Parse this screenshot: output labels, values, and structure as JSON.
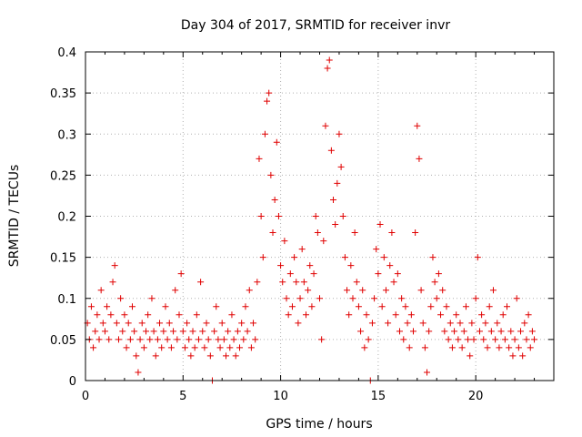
{
  "chart_data": {
    "type": "scatter",
    "title": "Day 304 of 2017, SRMTID for receiver invr",
    "xlabel": "GPS time / hours",
    "ylabel": "SRMTID / TECUs",
    "xlim": [
      0,
      24
    ],
    "ylim": [
      0,
      0.4
    ],
    "xticks": [
      0,
      5,
      10,
      15,
      20
    ],
    "yticks": [
      0,
      0.05,
      0.1,
      0.15,
      0.2,
      0.25,
      0.3,
      0.35,
      0.4
    ],
    "xtick_labels": [
      "0",
      "5",
      "10",
      "15",
      "20"
    ],
    "ytick_labels": [
      "0",
      "0.05",
      "0.1",
      "0.15",
      "0.2",
      "0.25",
      "0.3",
      "0.35",
      "0.4"
    ],
    "grid": true,
    "marker": "+",
    "color": "#e00000",
    "series": [
      {
        "name": "",
        "points": [
          [
            0.1,
            0.07
          ],
          [
            0.2,
            0.05
          ],
          [
            0.3,
            0.09
          ],
          [
            0.4,
            0.04
          ],
          [
            0.5,
            0.06
          ],
          [
            0.6,
            0.08
          ],
          [
            0.7,
            0.05
          ],
          [
            0.8,
            0.11
          ],
          [
            0.9,
            0.07
          ],
          [
            1.0,
            0.06
          ],
          [
            1.1,
            0.09
          ],
          [
            1.2,
            0.05
          ],
          [
            1.3,
            0.08
          ],
          [
            1.4,
            0.12
          ],
          [
            1.5,
            0.14
          ],
          [
            1.6,
            0.07
          ],
          [
            1.7,
            0.05
          ],
          [
            1.8,
            0.1
          ],
          [
            1.9,
            0.06
          ],
          [
            2.0,
            0.08
          ],
          [
            2.1,
            0.04
          ],
          [
            2.2,
            0.07
          ],
          [
            2.3,
            0.05
          ],
          [
            2.4,
            0.09
          ],
          [
            2.5,
            0.06
          ],
          [
            2.6,
            0.03
          ],
          [
            2.7,
            0.01
          ],
          [
            2.8,
            0.05
          ],
          [
            2.9,
            0.07
          ],
          [
            3.0,
            0.04
          ],
          [
            3.1,
            0.06
          ],
          [
            3.2,
            0.08
          ],
          [
            3.3,
            0.05
          ],
          [
            3.4,
            0.1
          ],
          [
            3.5,
            0.06
          ],
          [
            3.6,
            0.03
          ],
          [
            3.7,
            0.05
          ],
          [
            3.8,
            0.07
          ],
          [
            3.9,
            0.04
          ],
          [
            4.0,
            0.06
          ],
          [
            4.1,
            0.09
          ],
          [
            4.2,
            0.05
          ],
          [
            4.3,
            0.07
          ],
          [
            4.4,
            0.04
          ],
          [
            4.5,
            0.06
          ],
          [
            4.6,
            0.11
          ],
          [
            4.7,
            0.05
          ],
          [
            4.8,
            0.08
          ],
          [
            4.9,
            0.13
          ],
          [
            5.0,
            0.06
          ],
          [
            5.1,
            0.04
          ],
          [
            5.2,
            0.07
          ],
          [
            5.3,
            0.05
          ],
          [
            5.4,
            0.03
          ],
          [
            5.5,
            0.06
          ],
          [
            5.6,
            0.04
          ],
          [
            5.7,
            0.08
          ],
          [
            5.8,
            0.05
          ],
          [
            5.9,
            0.12
          ],
          [
            6.0,
            0.06
          ],
          [
            6.1,
            0.04
          ],
          [
            6.2,
            0.07
          ],
          [
            6.3,
            0.05
          ],
          [
            6.4,
            0.03
          ],
          [
            6.5,
            0.0
          ],
          [
            6.6,
            0.06
          ],
          [
            6.7,
            0.09
          ],
          [
            6.8,
            0.05
          ],
          [
            6.9,
            0.04
          ],
          [
            7.0,
            0.07
          ],
          [
            7.1,
            0.05
          ],
          [
            7.2,
            0.03
          ],
          [
            7.3,
            0.06
          ],
          [
            7.4,
            0.04
          ],
          [
            7.5,
            0.08
          ],
          [
            7.6,
            0.05
          ],
          [
            7.7,
            0.03
          ],
          [
            7.8,
            0.06
          ],
          [
            7.9,
            0.04
          ],
          [
            8.0,
            0.07
          ],
          [
            8.1,
            0.05
          ],
          [
            8.2,
            0.09
          ],
          [
            8.3,
            0.06
          ],
          [
            8.4,
            0.11
          ],
          [
            8.5,
            0.04
          ],
          [
            8.6,
            0.07
          ],
          [
            8.7,
            0.05
          ],
          [
            8.8,
            0.12
          ],
          [
            8.9,
            0.27
          ],
          [
            9.0,
            0.2
          ],
          [
            9.1,
            0.15
          ],
          [
            9.2,
            0.3
          ],
          [
            9.3,
            0.34
          ],
          [
            9.4,
            0.35
          ],
          [
            9.5,
            0.25
          ],
          [
            9.6,
            0.18
          ],
          [
            9.7,
            0.22
          ],
          [
            9.8,
            0.29
          ],
          [
            9.9,
            0.2
          ],
          [
            10.0,
            0.14
          ],
          [
            10.1,
            0.12
          ],
          [
            10.2,
            0.17
          ],
          [
            10.3,
            0.1
          ],
          [
            10.4,
            0.08
          ],
          [
            10.5,
            0.13
          ],
          [
            10.6,
            0.09
          ],
          [
            10.7,
            0.15
          ],
          [
            10.8,
            0.12
          ],
          [
            10.9,
            0.07
          ],
          [
            11.0,
            0.1
          ],
          [
            11.1,
            0.16
          ],
          [
            11.2,
            0.12
          ],
          [
            11.3,
            0.08
          ],
          [
            11.4,
            0.11
          ],
          [
            11.5,
            0.14
          ],
          [
            11.6,
            0.09
          ],
          [
            11.7,
            0.13
          ],
          [
            11.8,
            0.2
          ],
          [
            11.9,
            0.18
          ],
          [
            12.0,
            0.1
          ],
          [
            12.1,
            0.05
          ],
          [
            12.2,
            0.17
          ],
          [
            12.3,
            0.31
          ],
          [
            12.4,
            0.38
          ],
          [
            12.5,
            0.39
          ],
          [
            12.6,
            0.28
          ],
          [
            12.7,
            0.22
          ],
          [
            12.8,
            0.19
          ],
          [
            12.9,
            0.24
          ],
          [
            13.0,
            0.3
          ],
          [
            13.1,
            0.26
          ],
          [
            13.2,
            0.2
          ],
          [
            13.3,
            0.15
          ],
          [
            13.4,
            0.11
          ],
          [
            13.5,
            0.08
          ],
          [
            13.6,
            0.14
          ],
          [
            13.7,
            0.1
          ],
          [
            13.8,
            0.18
          ],
          [
            13.9,
            0.12
          ],
          [
            14.0,
            0.09
          ],
          [
            14.1,
            0.06
          ],
          [
            14.2,
            0.11
          ],
          [
            14.3,
            0.04
          ],
          [
            14.4,
            0.08
          ],
          [
            14.5,
            0.05
          ],
          [
            14.6,
            0.0
          ],
          [
            14.7,
            0.07
          ],
          [
            14.8,
            0.1
          ],
          [
            14.9,
            0.16
          ],
          [
            15.0,
            0.13
          ],
          [
            15.1,
            0.19
          ],
          [
            15.2,
            0.09
          ],
          [
            15.3,
            0.15
          ],
          [
            15.4,
            0.11
          ],
          [
            15.5,
            0.07
          ],
          [
            15.6,
            0.14
          ],
          [
            15.7,
            0.18
          ],
          [
            15.8,
            0.12
          ],
          [
            15.9,
            0.08
          ],
          [
            16.0,
            0.13
          ],
          [
            16.1,
            0.06
          ],
          [
            16.2,
            0.1
          ],
          [
            16.3,
            0.05
          ],
          [
            16.4,
            0.09
          ],
          [
            16.5,
            0.07
          ],
          [
            16.6,
            0.04
          ],
          [
            16.7,
            0.08
          ],
          [
            16.8,
            0.06
          ],
          [
            16.9,
            0.18
          ],
          [
            17.0,
            0.31
          ],
          [
            17.1,
            0.27
          ],
          [
            17.2,
            0.11
          ],
          [
            17.3,
            0.07
          ],
          [
            17.4,
            0.04
          ],
          [
            17.5,
            0.01
          ],
          [
            17.6,
            0.06
          ],
          [
            17.7,
            0.09
          ],
          [
            17.8,
            0.15
          ],
          [
            17.9,
            0.12
          ],
          [
            18.0,
            0.1
          ],
          [
            18.1,
            0.13
          ],
          [
            18.2,
            0.08
          ],
          [
            18.3,
            0.11
          ],
          [
            18.4,
            0.06
          ],
          [
            18.5,
            0.09
          ],
          [
            18.6,
            0.05
          ],
          [
            18.7,
            0.07
          ],
          [
            18.8,
            0.04
          ],
          [
            18.9,
            0.06
          ],
          [
            19.0,
            0.08
          ],
          [
            19.1,
            0.05
          ],
          [
            19.2,
            0.07
          ],
          [
            19.3,
            0.04
          ],
          [
            19.4,
            0.06
          ],
          [
            19.5,
            0.09
          ],
          [
            19.6,
            0.05
          ],
          [
            19.7,
            0.03
          ],
          [
            19.8,
            0.07
          ],
          [
            19.9,
            0.05
          ],
          [
            20.0,
            0.1
          ],
          [
            20.1,
            0.15
          ],
          [
            20.2,
            0.06
          ],
          [
            20.3,
            0.08
          ],
          [
            20.4,
            0.05
          ],
          [
            20.5,
            0.07
          ],
          [
            20.6,
            0.04
          ],
          [
            20.7,
            0.09
          ],
          [
            20.8,
            0.06
          ],
          [
            20.9,
            0.11
          ],
          [
            21.0,
            0.05
          ],
          [
            21.1,
            0.07
          ],
          [
            21.2,
            0.04
          ],
          [
            21.3,
            0.06
          ],
          [
            21.4,
            0.08
          ],
          [
            21.5,
            0.05
          ],
          [
            21.6,
            0.09
          ],
          [
            21.7,
            0.04
          ],
          [
            21.8,
            0.06
          ],
          [
            21.9,
            0.03
          ],
          [
            22.0,
            0.05
          ],
          [
            22.1,
            0.1
          ],
          [
            22.2,
            0.04
          ],
          [
            22.3,
            0.06
          ],
          [
            22.4,
            0.03
          ],
          [
            22.5,
            0.07
          ],
          [
            22.6,
            0.05
          ],
          [
            22.7,
            0.08
          ],
          [
            22.8,
            0.04
          ],
          [
            22.9,
            0.06
          ],
          [
            23.0,
            0.05
          ]
        ]
      }
    ]
  }
}
